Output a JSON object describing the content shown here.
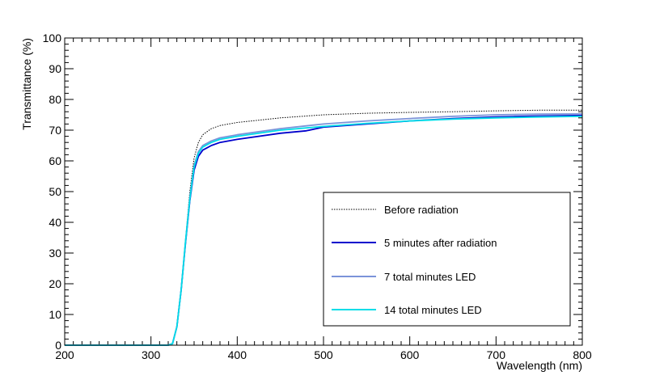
{
  "chart_data": {
    "type": "line",
    "title": "",
    "xlabel": "Wavelength (nm)",
    "ylabel": "Transmittance (%)",
    "xlim": [
      200,
      800
    ],
    "ylim": [
      0,
      100
    ],
    "x_ticks": [
      200,
      300,
      400,
      500,
      600,
      700,
      800
    ],
    "y_ticks": [
      0,
      10,
      20,
      30,
      40,
      50,
      60,
      70,
      80,
      90,
      100
    ],
    "x_tick_labels": [
      "200",
      "300",
      "400",
      "500",
      "600",
      "700",
      "800"
    ],
    "y_tick_labels": [
      "0",
      "10",
      "20",
      "30",
      "40",
      "50",
      "60",
      "70",
      "80",
      "90",
      "100"
    ],
    "grid": false,
    "legend_position": "bottom-right",
    "series": [
      {
        "name": "Before radiation",
        "color": "#000000",
        "style": "dotted",
        "x": [
          200,
          320,
          325,
          330,
          335,
          340,
          345,
          350,
          355,
          360,
          370,
          380,
          400,
          450,
          500,
          550,
          600,
          650,
          700,
          750,
          800
        ],
        "y": [
          0,
          0,
          0.5,
          6,
          18,
          34,
          50,
          61,
          66,
          68.5,
          70.5,
          71.5,
          72.5,
          74,
          75,
          75.5,
          75.8,
          76,
          76.3,
          76.5,
          76.5
        ]
      },
      {
        "name": "5 minutes after radiation",
        "color": "#0000cc",
        "style": "solid",
        "x": [
          200,
          320,
          325,
          330,
          335,
          340,
          345,
          350,
          355,
          360,
          370,
          380,
          400,
          450,
          480,
          500,
          550,
          600,
          650,
          700,
          750,
          800
        ],
        "y": [
          0,
          0,
          0.5,
          6,
          18,
          33,
          47,
          57,
          61.5,
          63.5,
          65,
          66,
          67,
          69,
          69.8,
          71,
          72,
          73,
          73.8,
          74.3,
          74.6,
          74.8
        ]
      },
      {
        "name": "7 total minutes LED",
        "color": "#7b93d9",
        "style": "solid",
        "x": [
          200,
          320,
          325,
          330,
          335,
          340,
          345,
          350,
          355,
          360,
          370,
          380,
          400,
          450,
          500,
          550,
          600,
          650,
          700,
          750,
          800
        ],
        "y": [
          0,
          0,
          0.5,
          6,
          18,
          33.5,
          48,
          58.5,
          63,
          65,
          66.5,
          67.5,
          68.5,
          70.5,
          72,
          73,
          73.8,
          74.5,
          75,
          75.2,
          75.3
        ]
      },
      {
        "name": "14 total minutes LED",
        "color": "#00dde8",
        "style": "solid",
        "x": [
          200,
          320,
          325,
          330,
          335,
          340,
          345,
          350,
          355,
          360,
          370,
          380,
          400,
          450,
          500,
          550,
          600,
          650,
          700,
          750,
          800
        ],
        "y": [
          0,
          0,
          0.5,
          6,
          18,
          33.5,
          47.5,
          58,
          62.5,
          64.5,
          66,
          67,
          68,
          70,
          71.2,
          72.2,
          73,
          73.6,
          74,
          74.3,
          74.5
        ]
      }
    ]
  }
}
